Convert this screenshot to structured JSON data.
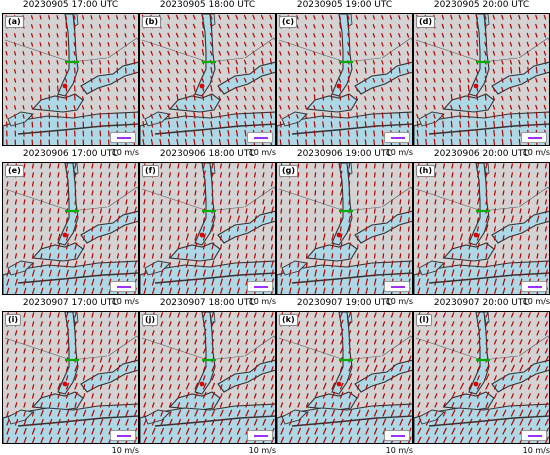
{
  "figure": {
    "scale_label": "10 m/s",
    "colors": {
      "water": "#add8e6",
      "land": "#d3d3d3",
      "coastline": "#333333",
      "vector": "#b40000",
      "scale_arrow": "#9b30ff",
      "green_marker": "#00b000",
      "red_marker": "#e00000"
    },
    "panels": [
      {
        "label": "(a)",
        "time": "20230905 17:00 UTC",
        "wind_u": -0.15,
        "wind_v": 0.55,
        "onshore": 0.5,
        "extra_reach": false
      },
      {
        "label": "(b)",
        "time": "20230905 18:00 UTC",
        "wind_u": -0.25,
        "wind_v": 0.6,
        "onshore": 0.6,
        "extra_reach": false
      },
      {
        "label": "(c)",
        "time": "20230905 19:00 UTC",
        "wind_u": -0.2,
        "wind_v": 0.55,
        "onshore": 0.6,
        "extra_reach": false
      },
      {
        "label": "(d)",
        "time": "20230905 20:00 UTC",
        "wind_u": -0.2,
        "wind_v": 0.6,
        "onshore": 0.7,
        "extra_reach": false
      },
      {
        "label": "(e)",
        "time": "20230906 17:00 UTC",
        "wind_u": 0.15,
        "wind_v": 0.7,
        "onshore": 0.4,
        "extra_reach": false
      },
      {
        "label": "(f)",
        "time": "20230906 18:00 UTC",
        "wind_u": 0.15,
        "wind_v": 0.7,
        "onshore": 0.5,
        "extra_reach": false
      },
      {
        "label": "(g)",
        "time": "20230906 19:00 UTC",
        "wind_u": 0.1,
        "wind_v": 0.7,
        "onshore": 0.5,
        "extra_reach": false
      },
      {
        "label": "(h)",
        "time": "20230906 20:00 UTC",
        "wind_u": 0.15,
        "wind_v": 0.7,
        "onshore": 0.5,
        "extra_reach": false
      },
      {
        "label": "(i)",
        "time": "20230907 17:00 UTC",
        "wind_u": 0.2,
        "wind_v": 0.7,
        "onshore": 0.3,
        "extra_reach": true
      },
      {
        "label": "(j)",
        "time": "20230907 18:00 UTC",
        "wind_u": 0.25,
        "wind_v": 0.7,
        "onshore": 0.35,
        "extra_reach": true
      },
      {
        "label": "(k)",
        "time": "20230907 19:00 UTC",
        "wind_u": 0.25,
        "wind_v": 0.7,
        "onshore": 0.4,
        "extra_reach": true
      },
      {
        "label": "(l)",
        "time": "20230907 20:00 UTC",
        "wind_u": 0.3,
        "wind_v": 0.7,
        "onshore": 0.4,
        "extra_reach": true
      }
    ]
  }
}
